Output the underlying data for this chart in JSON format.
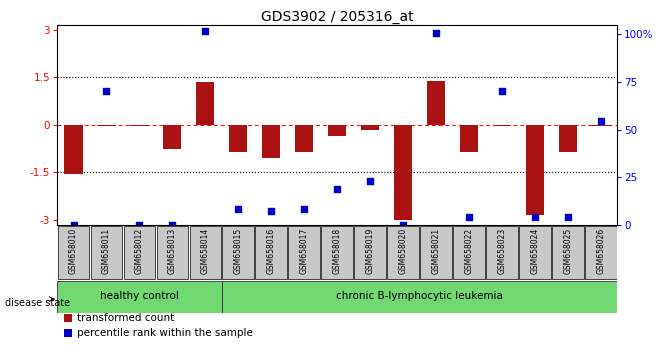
{
  "title": "GDS3902 / 205316_at",
  "samples": [
    "GSM658010",
    "GSM658011",
    "GSM658012",
    "GSM658013",
    "GSM658014",
    "GSM658015",
    "GSM658016",
    "GSM658017",
    "GSM658018",
    "GSM658019",
    "GSM658020",
    "GSM658021",
    "GSM658022",
    "GSM658023",
    "GSM658024",
    "GSM658025",
    "GSM658026"
  ],
  "red_values": [
    -1.55,
    -0.05,
    -0.05,
    -0.75,
    1.35,
    -0.85,
    -1.05,
    -0.85,
    -0.35,
    -0.15,
    -3.0,
    1.38,
    -0.85,
    -0.05,
    -2.85,
    -0.85,
    -0.05
  ],
  "blue_values": [
    0,
    67,
    0,
    0,
    97,
    8,
    7,
    8,
    18,
    22,
    0,
    96,
    4,
    67,
    4,
    4,
    52
  ],
  "ylim_left": [
    -3.15,
    3.15
  ],
  "yticks_left": [
    -3,
    -1.5,
    0,
    1.5,
    3
  ],
  "ytick_labels_left": [
    "-3",
    "-1.5",
    "0",
    "1.5",
    "3"
  ],
  "yticks_right_pct": [
    0,
    25,
    50,
    75,
    100
  ],
  "ytick_labels_right": [
    "0",
    "25",
    "50",
    "75",
    "100%"
  ],
  "bar_color": "#aa1111",
  "dot_color": "#0000cc",
  "healthy_count": 5,
  "group_labels": [
    "healthy control",
    "chronic B-lymphocytic leukemia"
  ],
  "disease_state_label": "disease state",
  "legend_red": "transformed count",
  "legend_blue": "percentile rank within the sample",
  "title_fontsize": 10,
  "label_fontsize": 7,
  "sample_fontsize": 5.5
}
